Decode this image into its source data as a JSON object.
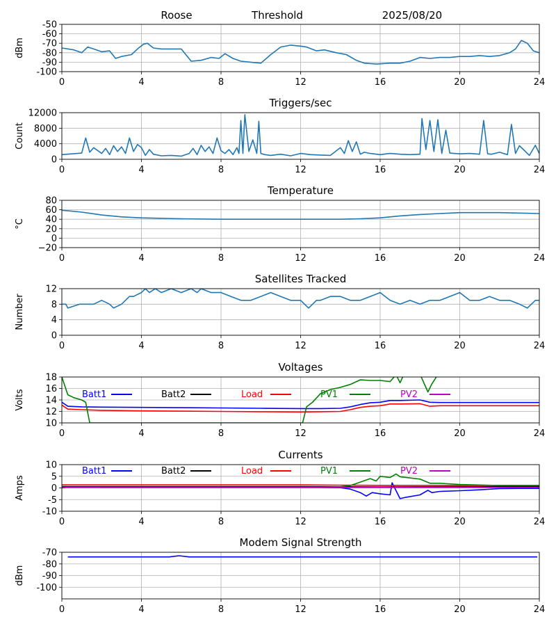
{
  "header": {
    "station": "Roose",
    "mode": "Threshold",
    "date": "2025/08/20"
  },
  "colors": {
    "tab_blue": "#1f77b4",
    "batt1": "#0000ff",
    "batt2": "#000000",
    "load": "#ff0000",
    "pv1": "#008000",
    "pv2": "#bf00bf",
    "grid": "#b0b0b0"
  },
  "chart_data": [
    {
      "type": "line",
      "title": "",
      "ylabel": "dBm",
      "xlim": [
        0,
        24
      ],
      "ylim": [
        -100,
        -50
      ],
      "xticks": [
        "0",
        "4",
        "8",
        "12",
        "16",
        "20",
        "24"
      ],
      "yticks": [
        "-50",
        "-60",
        "-70",
        "-80",
        "-90",
        "-100"
      ],
      "series": [
        {
          "color": "#1f77b4",
          "x": [
            0,
            0.6,
            1.0,
            1.3,
            1.6,
            2.0,
            2.4,
            2.7,
            3.0,
            3.5,
            3.8,
            4.1,
            4.3,
            4.6,
            5.0,
            5.5,
            6.0,
            6.5,
            7.0,
            7.5,
            7.9,
            8.2,
            8.6,
            9.0,
            9.5,
            10.0,
            10.5,
            11.0,
            11.5,
            12.0,
            12.3,
            12.8,
            13.2,
            13.8,
            14.3,
            14.8,
            15.2,
            15.8,
            16.5,
            17.0,
            17.5,
            18.0,
            18.5,
            19.0,
            19.5,
            20.0,
            20.5,
            21.0,
            21.5,
            22.0,
            22.5,
            22.8,
            23.1,
            23.4,
            23.7,
            24.0
          ],
          "y": [
            -75,
            -77,
            -80,
            -74,
            -76,
            -79,
            -78,
            -86,
            -84,
            -82,
            -76,
            -71,
            -70,
            -75,
            -76,
            -76,
            -76,
            -89,
            -88,
            -85,
            -86,
            -81,
            -86,
            -89,
            -90,
            -91,
            -82,
            -74,
            -72,
            -73,
            -74,
            -78,
            -77,
            -80,
            -82,
            -88,
            -91,
            -92,
            -91,
            -91,
            -89,
            -85,
            -86,
            -85,
            -85,
            -84,
            -84,
            -83,
            -84,
            -83,
            -80,
            -76,
            -67,
            -70,
            -78,
            -80
          ]
        }
      ]
    },
    {
      "type": "line",
      "title": "Triggers/sec",
      "ylabel": "Count",
      "xlim": [
        0,
        24
      ],
      "ylim": [
        0,
        12000
      ],
      "xticks": [
        "0",
        "4",
        "8",
        "12",
        "16",
        "20",
        "24"
      ],
      "yticks": [
        "0",
        "4000",
        "8000",
        "12000"
      ],
      "series": [
        {
          "color": "#1f77b4",
          "x": [
            0,
            0.5,
            1.0,
            1.2,
            1.4,
            1.6,
            2.0,
            2.2,
            2.4,
            2.6,
            2.8,
            3.0,
            3.2,
            3.4,
            3.6,
            3.8,
            4.0,
            4.2,
            4.4,
            4.6,
            5.0,
            5.5,
            6.0,
            6.4,
            6.6,
            6.8,
            7.0,
            7.2,
            7.4,
            7.6,
            7.8,
            8.0,
            8.2,
            8.4,
            8.6,
            8.8,
            8.9,
            9.0,
            9.1,
            9.2,
            9.4,
            9.6,
            9.8,
            9.9,
            10.0,
            10.2,
            10.5,
            11.0,
            11.5,
            12.0,
            12.5,
            13.0,
            13.5,
            14.0,
            14.2,
            14.4,
            14.6,
            14.8,
            15.0,
            15.2,
            15.5,
            16.0,
            16.5,
            17.0,
            17.5,
            18.0,
            18.1,
            18.3,
            18.5,
            18.7,
            18.9,
            19.1,
            19.3,
            19.5,
            20.0,
            20.5,
            21.0,
            21.2,
            21.4,
            21.6,
            22.0,
            22.4,
            22.6,
            22.8,
            23.0,
            23.2,
            23.5,
            23.8,
            24.0
          ],
          "y": [
            1200,
            1400,
            1600,
            5500,
            1800,
            3000,
            1500,
            2800,
            1200,
            3500,
            2000,
            3200,
            1500,
            5500,
            2000,
            3800,
            3000,
            1000,
            2500,
            1300,
            900,
            1000,
            800,
            1500,
            2800,
            1200,
            3600,
            2000,
            3200,
            1500,
            5500,
            2200,
            1500,
            2500,
            1200,
            3000,
            1500,
            10000,
            1500,
            11500,
            2000,
            5000,
            1500,
            9800,
            1500,
            1200,
            1000,
            1300,
            900,
            1500,
            1200,
            1100,
            1000,
            3000,
            1500,
            4800,
            2000,
            4500,
            1300,
            1800,
            1500,
            1200,
            1500,
            1300,
            1200,
            1300,
            10500,
            2500,
            10000,
            2000,
            10200,
            1500,
            7500,
            1600,
            1400,
            1500,
            1300,
            10000,
            1400,
            1300,
            1800,
            1200,
            9000,
            1500,
            3500,
            2500,
            1000,
            3600,
            1500
          ]
        }
      ]
    },
    {
      "type": "line",
      "title": "Temperature",
      "ylabel": "°C",
      "xlim": [
        0,
        24
      ],
      "ylim": [
        -20,
        80
      ],
      "xticks": [
        "0",
        "4",
        "8",
        "12",
        "16",
        "20",
        "24"
      ],
      "yticks": [
        "80",
        "60",
        "40",
        "20",
        "0",
        "−20"
      ],
      "series": [
        {
          "color": "#1f77b4",
          "x": [
            0,
            0.5,
            1,
            2,
            3,
            4,
            6,
            8,
            10,
            12,
            14,
            15,
            16,
            17,
            18,
            19,
            20,
            22,
            24
          ],
          "y": [
            59,
            57,
            55,
            49,
            45,
            43,
            41,
            40,
            40,
            40,
            40,
            41,
            43,
            47,
            50,
            52,
            54,
            54,
            52
          ]
        }
      ]
    },
    {
      "type": "line",
      "title": "Satellites Tracked",
      "ylabel": "Number",
      "xlim": [
        0,
        24
      ],
      "ylim": [
        0,
        12
      ],
      "xticks": [
        "0",
        "4",
        "8",
        "12",
        "16",
        "20",
        "24"
      ],
      "yticks": [
        "12",
        "8",
        "4",
        "0"
      ],
      "series": [
        {
          "color": "#1f77b4",
          "x": [
            0,
            0.2,
            0.3,
            0.9,
            1.6,
            2.0,
            2.4,
            2.6,
            3.0,
            3.4,
            3.6,
            4.0,
            4.2,
            4.4,
            4.7,
            5.0,
            5.5,
            6.0,
            6.5,
            6.8,
            7.0,
            7.5,
            8.0,
            8.5,
            9.0,
            9.5,
            10.0,
            10.5,
            11.0,
            11.5,
            12.0,
            12.2,
            12.4,
            12.8,
            13.0,
            13.5,
            14.0,
            14.5,
            15.0,
            15.5,
            16.0,
            16.5,
            17.0,
            17.5,
            18.0,
            18.5,
            19.0,
            19.5,
            20.0,
            20.5,
            21.0,
            21.5,
            22.0,
            22.5,
            23.0,
            23.4,
            23.8,
            24.0
          ],
          "y": [
            8,
            8,
            7,
            8,
            8,
            9,
            8,
            7,
            8,
            10,
            10,
            11,
            12,
            11,
            12,
            11,
            12,
            11,
            12,
            11,
            12,
            11,
            11,
            10,
            9,
            9,
            10,
            11,
            10,
            9,
            9,
            8,
            7,
            9,
            9,
            10,
            10,
            9,
            9,
            10,
            11,
            9,
            8,
            9,
            8,
            9,
            9,
            10,
            11,
            9,
            9,
            10,
            9,
            9,
            8,
            7,
            9,
            9
          ]
        }
      ]
    },
    {
      "type": "line",
      "title": "Voltages",
      "ylabel": "Volts",
      "xlim": [
        0,
        24
      ],
      "ylim": [
        10,
        18
      ],
      "xticks": [
        "0",
        "4",
        "8",
        "12",
        "16",
        "20",
        "24"
      ],
      "yticks": [
        "18",
        "16",
        "14",
        "12",
        "10"
      ],
      "series": [
        {
          "name": "Batt1",
          "color": "#0000ff",
          "x": [
            0,
            0.3,
            1,
            2,
            4,
            6,
            8,
            10,
            12,
            13,
            14,
            14.5,
            15,
            15.5,
            16,
            16.5,
            17,
            18,
            18.5,
            19,
            20,
            22,
            24
          ],
          "y": [
            13.6,
            12.9,
            12.8,
            12.75,
            12.7,
            12.65,
            12.6,
            12.55,
            12.5,
            12.5,
            12.55,
            12.8,
            13.2,
            13.5,
            13.6,
            13.9,
            13.9,
            14.0,
            13.6,
            13.55,
            13.55,
            13.55,
            13.55
          ]
        },
        {
          "name": "Batt2",
          "color": "#000000",
          "x": [],
          "y": []
        },
        {
          "name": "Load",
          "color": "#ff0000",
          "x": [
            0,
            0.3,
            1,
            2,
            4,
            6,
            8,
            10,
            12,
            13,
            14,
            14.5,
            15,
            15.5,
            16,
            16.5,
            17,
            18,
            18.5,
            19,
            20,
            22,
            24
          ],
          "y": [
            13.1,
            12.4,
            12.3,
            12.2,
            12.1,
            12.05,
            12.0,
            11.95,
            11.9,
            11.95,
            12.0,
            12.3,
            12.7,
            12.9,
            13.0,
            13.3,
            13.3,
            13.35,
            12.9,
            13.0,
            13.0,
            13.0,
            13.0
          ]
        },
        {
          "name": "PV1",
          "color": "#008000",
          "x": [
            0,
            0.3,
            0.6,
            1,
            1.2,
            1.4,
            12.1,
            12.3,
            12.6,
            13,
            13.5,
            14,
            14.5,
            15,
            15.5,
            16,
            16.5,
            16.8,
            17.0,
            17.2,
            17.5,
            18.0,
            18.4,
            18.6,
            18.9
          ],
          "y": [
            18.0,
            14.9,
            14.4,
            14.0,
            13.6,
            10.0,
            10.0,
            12.8,
            13.6,
            15.1,
            15.8,
            16.2,
            16.7,
            17.5,
            17.4,
            17.4,
            17.2,
            18.4,
            17.0,
            18.5,
            18.3,
            18.5,
            15.4,
            16.8,
            18.4
          ]
        },
        {
          "name": "PV2",
          "color": "#bf00bf",
          "x": [],
          "y": []
        }
      ]
    },
    {
      "type": "line",
      "title": "Currents",
      "ylabel": "Amps",
      "xlim": [
        0,
        24
      ],
      "ylim": [
        -10,
        10
      ],
      "xticks": [
        "0",
        "4",
        "8",
        "12",
        "16",
        "20",
        "24"
      ],
      "yticks": [
        "10",
        "5",
        "0",
        "-5",
        "-10"
      ],
      "series": [
        {
          "name": "Batt1",
          "color": "#0000ff",
          "x": [
            0,
            0.5,
            2,
            4,
            8,
            12,
            13,
            14,
            14.5,
            15,
            15.3,
            15.6,
            16,
            16.5,
            16.6,
            17.0,
            17.3,
            18.0,
            18.4,
            18.6,
            19,
            20,
            21,
            22,
            23,
            24
          ],
          "y": [
            0,
            0.5,
            0.2,
            0.2,
            0.2,
            0.2,
            0.2,
            0.1,
            -0.5,
            -2,
            -3.5,
            -2,
            -2.5,
            -3.0,
            2.2,
            -4.6,
            -4.0,
            -3.0,
            -1.0,
            -2.0,
            -1.5,
            -1.2,
            -0.8,
            -0.3,
            -0.2,
            -0.2
          ]
        },
        {
          "name": "Batt2",
          "color": "#000000",
          "x": [
            0,
            2,
            4,
            8,
            12,
            14,
            16,
            18,
            20,
            22,
            24
          ],
          "y": [
            0.6,
            0.6,
            0.6,
            0.6,
            0.6,
            0.5,
            0.4,
            0.5,
            0.6,
            0.6,
            0.6
          ]
        },
        {
          "name": "Load",
          "color": "#ff0000",
          "x": [
            0,
            2,
            4,
            8,
            12,
            14,
            16,
            18,
            20,
            22,
            24
          ],
          "y": [
            1.3,
            1.3,
            1.3,
            1.3,
            1.3,
            1.2,
            1.1,
            1.1,
            1.1,
            1.1,
            1.1
          ]
        },
        {
          "name": "PV1",
          "color": "#008000",
          "x": [
            0,
            4,
            8,
            12,
            13,
            14,
            14.5,
            15,
            15.5,
            15.8,
            16,
            16.5,
            16.8,
            17.0,
            18.0,
            18.5,
            19,
            20,
            22,
            24
          ],
          "y": [
            0.3,
            0.3,
            0.3,
            0.3,
            0.3,
            0.5,
            1,
            2.5,
            4,
            3,
            5,
            4.5,
            6,
            4.8,
            3.8,
            2,
            2,
            1.5,
            1,
            1
          ]
        },
        {
          "name": "PV2",
          "color": "#bf00bf",
          "x": [
            0,
            4,
            8,
            12,
            16,
            20,
            24
          ],
          "y": [
            0.2,
            0.2,
            0.2,
            0.2,
            0.2,
            0.2,
            0.2
          ]
        }
      ]
    },
    {
      "type": "line",
      "title": "Modem Signal Strength",
      "ylabel": "dBm",
      "xlim": [
        0,
        24
      ],
      "ylim": [
        -110,
        -70
      ],
      "xticks": [
        "0",
        "4",
        "8",
        "12",
        "16",
        "20",
        "24"
      ],
      "yticks": [
        "-70",
        "-80",
        "-90",
        "-100"
      ],
      "series": [
        {
          "color": "#0000ff",
          "x": [
            0.3,
            5.4,
            5.9,
            6.4,
            23.9
          ],
          "y": [
            -74,
            -74,
            -73,
            -74,
            -74
          ]
        }
      ]
    }
  ]
}
